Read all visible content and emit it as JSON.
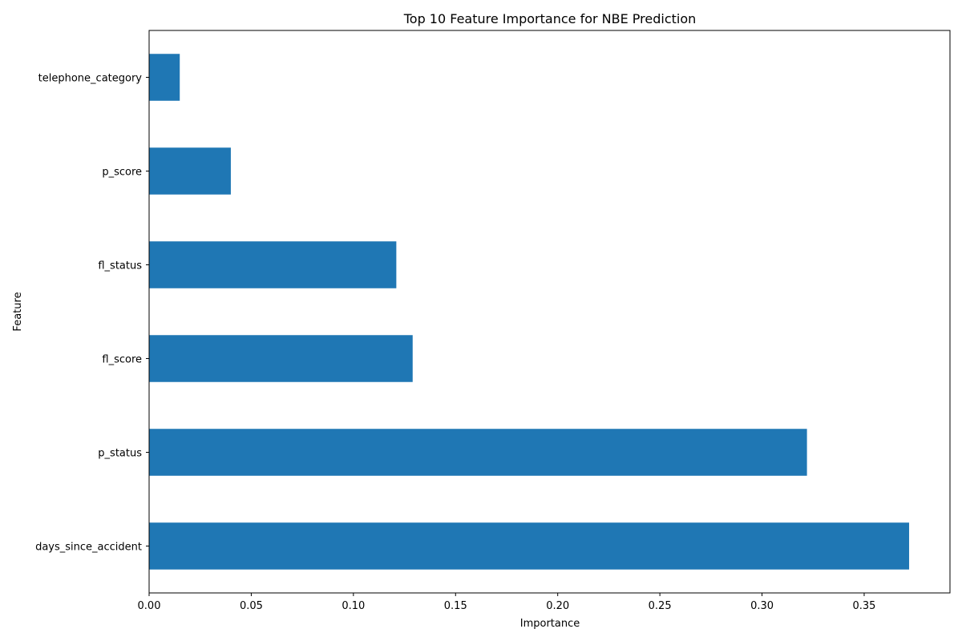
{
  "chart_data": {
    "type": "bar",
    "orientation": "horizontal",
    "title": "Top 10 Feature Importance for NBE Prediction",
    "xlabel": "Importance",
    "ylabel": "Feature",
    "categories": [
      "days_since_accident",
      "p_status",
      "fl_score",
      "fl_status",
      "p_score",
      "telephone_category"
    ],
    "values": [
      0.372,
      0.322,
      0.129,
      0.121,
      0.04,
      0.015
    ],
    "xlim": [
      0,
      0.392
    ],
    "xticks": [
      0.0,
      0.05,
      0.1,
      0.15,
      0.2,
      0.25,
      0.3,
      0.35
    ],
    "xtick_labels": [
      "0.00",
      "0.05",
      "0.10",
      "0.15",
      "0.20",
      "0.25",
      "0.30",
      "0.35"
    ],
    "grid": false,
    "bar_color": "#1f77b4"
  }
}
